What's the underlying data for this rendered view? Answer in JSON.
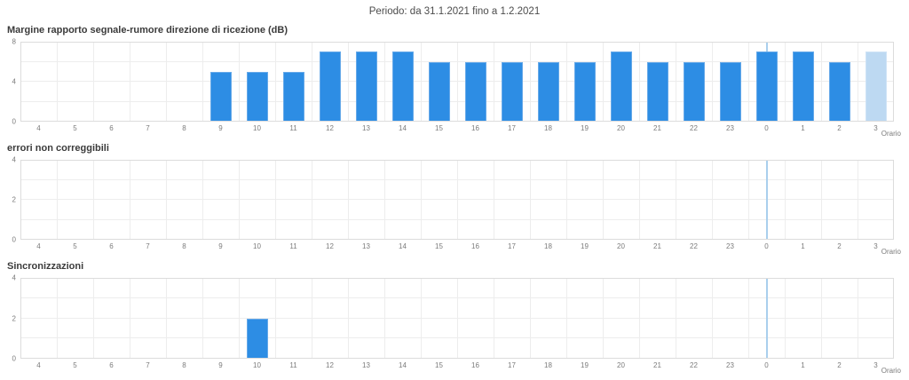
{
  "page": {
    "title": "Periodo: da 31.1.2021 fino a 1.2.2021"
  },
  "colors": {
    "bar": "#2d8de4",
    "bar_border": "#66a9e9",
    "bar_preliminary": "#bdd9f2",
    "bar_preliminary_border": "#cfe3f6",
    "marker_line": "#a9cfed",
    "grid": "#ededed",
    "plot_border": "#dcdcdc",
    "tick_text": "#7b7b7b"
  },
  "chart_data": [
    {
      "type": "bar",
      "title": "Margine rapporto segnale-rumore direzione di ricezione (dB)",
      "xlabel": "Orario",
      "ylabel": "",
      "ylim": [
        0,
        8
      ],
      "grid_step": 2,
      "grid": true,
      "legend_position": "none",
      "yticks": [
        {
          "v": 0,
          "label": "0"
        },
        {
          "v": 4,
          "label": "4"
        },
        {
          "v": 8,
          "label": "8"
        }
      ],
      "categories": [
        "4",
        "5",
        "6",
        "7",
        "8",
        "9",
        "10",
        "11",
        "12",
        "13",
        "14",
        "15",
        "16",
        "17",
        "18",
        "19",
        "20",
        "21",
        "22",
        "23",
        "0",
        "1",
        "2",
        "3"
      ],
      "values": [
        null,
        null,
        null,
        null,
        null,
        5,
        5,
        5,
        7,
        7,
        7,
        6,
        6,
        6,
        6,
        6,
        7,
        6,
        6,
        6,
        7,
        7,
        6,
        7
      ],
      "preliminary_indices": [
        23
      ],
      "marker_index": 20,
      "marker_category": "0"
    },
    {
      "type": "bar",
      "title": "errori non correggibili",
      "xlabel": "Orario",
      "ylabel": "",
      "ylim": [
        0,
        4
      ],
      "grid_step": 1,
      "grid": true,
      "legend_position": "none",
      "yticks": [
        {
          "v": 0,
          "label": "0"
        },
        {
          "v": 2,
          "label": "2"
        },
        {
          "v": 4,
          "label": "4"
        }
      ],
      "categories": [
        "4",
        "5",
        "6",
        "7",
        "8",
        "9",
        "10",
        "11",
        "12",
        "13",
        "14",
        "15",
        "16",
        "17",
        "18",
        "19",
        "20",
        "21",
        "22",
        "23",
        "0",
        "1",
        "2",
        "3"
      ],
      "values": [
        null,
        null,
        null,
        null,
        null,
        null,
        null,
        null,
        null,
        null,
        null,
        null,
        null,
        null,
        null,
        null,
        null,
        null,
        null,
        null,
        null,
        null,
        null,
        null
      ],
      "preliminary_indices": [],
      "marker_index": 20,
      "marker_category": "0"
    },
    {
      "type": "bar",
      "title": "Sincronizzazioni",
      "xlabel": "Orario",
      "ylabel": "",
      "ylim": [
        0,
        4
      ],
      "grid_step": 1,
      "grid": true,
      "legend_position": "none",
      "yticks": [
        {
          "v": 0,
          "label": "0"
        },
        {
          "v": 2,
          "label": "2"
        },
        {
          "v": 4,
          "label": "4"
        }
      ],
      "categories": [
        "4",
        "5",
        "6",
        "7",
        "8",
        "9",
        "10",
        "11",
        "12",
        "13",
        "14",
        "15",
        "16",
        "17",
        "18",
        "19",
        "20",
        "21",
        "22",
        "23",
        "0",
        "1",
        "2",
        "3"
      ],
      "values": [
        null,
        null,
        null,
        null,
        null,
        null,
        2,
        null,
        null,
        null,
        null,
        null,
        null,
        null,
        null,
        null,
        null,
        null,
        null,
        null,
        null,
        null,
        null,
        null
      ],
      "preliminary_indices": [],
      "marker_index": 20,
      "marker_category": "0"
    }
  ]
}
